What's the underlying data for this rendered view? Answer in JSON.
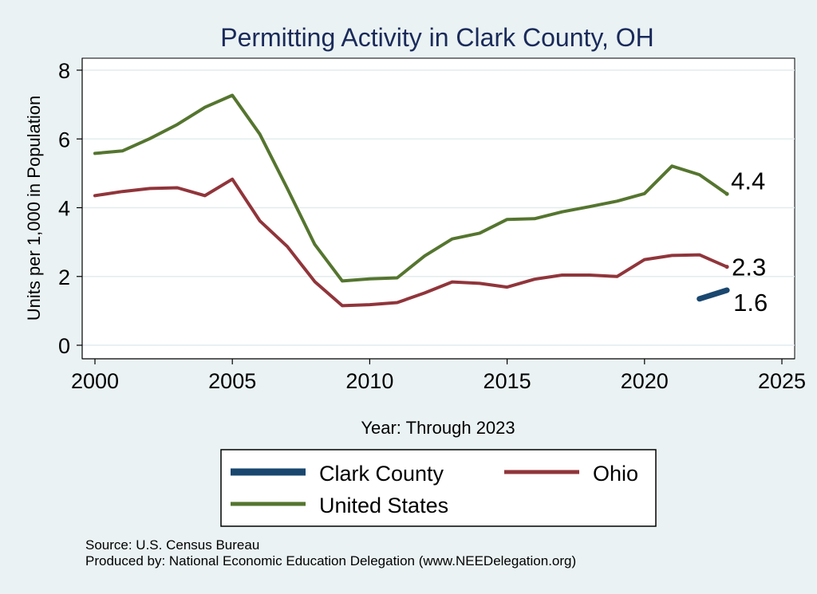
{
  "chart_data": {
    "type": "line",
    "title": "Permitting Activity in Clark County, OH",
    "xlabel": "Year: Through 2023",
    "ylabel": "Units per 1,000 in Population",
    "xlim": [
      2000,
      2025
    ],
    "ylim": [
      0,
      8
    ],
    "xticks": [
      "2000",
      "2005",
      "2010",
      "2015",
      "2020",
      "2025"
    ],
    "yticks": [
      "0",
      "2",
      "4",
      "6",
      "8"
    ],
    "grid": true,
    "legend_position": "bottom",
    "series": [
      {
        "name": "Clark County",
        "color": "#1a476f",
        "x": [
          2022,
          2023
        ],
        "y": [
          1.35,
          1.6
        ],
        "end_label": "1.6"
      },
      {
        "name": "Ohio",
        "color": "#90353b",
        "x": [
          2000,
          2001,
          2002,
          2003,
          2004,
          2005,
          2006,
          2007,
          2008,
          2009,
          2010,
          2011,
          2012,
          2013,
          2014,
          2015,
          2016,
          2017,
          2018,
          2019,
          2020,
          2021,
          2022,
          2023
        ],
        "y": [
          4.35,
          4.47,
          4.56,
          4.58,
          4.35,
          4.83,
          3.62,
          2.87,
          1.85,
          1.15,
          1.18,
          1.24,
          1.52,
          1.84,
          1.8,
          1.69,
          1.92,
          2.04,
          2.04,
          2.0,
          2.49,
          2.61,
          2.63,
          2.28
        ],
        "end_label": "2.3"
      },
      {
        "name": "United States",
        "color": "#55752f",
        "x": [
          2000,
          2001,
          2002,
          2003,
          2004,
          2005,
          2006,
          2007,
          2008,
          2009,
          2010,
          2011,
          2012,
          2013,
          2014,
          2015,
          2016,
          2017,
          2018,
          2019,
          2020,
          2021,
          2022,
          2023
        ],
        "y": [
          5.58,
          5.65,
          6.01,
          6.42,
          6.92,
          7.27,
          6.14,
          4.56,
          2.93,
          1.87,
          1.93,
          1.96,
          2.6,
          3.09,
          3.26,
          3.66,
          3.68,
          3.88,
          4.03,
          4.19,
          4.41,
          5.21,
          4.96,
          4.4
        ],
        "end_label": "4.4"
      }
    ]
  },
  "footer": {
    "source": "Source: U.S. Census Bureau",
    "produced_by": "Produced by: National Economic Education Delegation (www.NEEDelegation.org)"
  }
}
